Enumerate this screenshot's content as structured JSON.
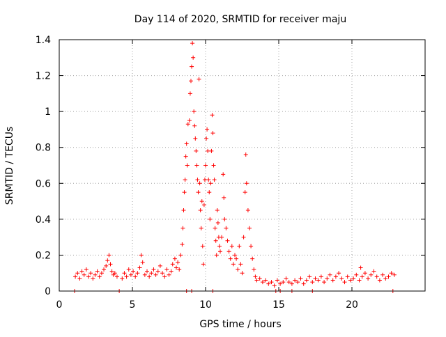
{
  "chart_data": {
    "type": "scatter",
    "title": "Day 114 of 2020, SRMTID for receiver maju",
    "xlabel": "GPS time / hours",
    "ylabel": "SRMTID / TECUs",
    "xlim": [
      0,
      25
    ],
    "ylim": [
      0,
      1.4
    ],
    "xticks": [
      0,
      5,
      10,
      15,
      20
    ],
    "yticks": [
      0,
      0.2,
      0.4,
      0.6,
      0.8,
      1,
      1.2,
      1.4
    ],
    "xtick_labels": [
      "0",
      "5",
      "10",
      "15",
      "20"
    ],
    "ytick_labels": [
      "0",
      "0.2",
      "0.4",
      "0.6",
      "0.8",
      "1",
      "1.2",
      "1.4"
    ],
    "grid": true,
    "marker": "+",
    "color": "#ff0000",
    "series": [
      {
        "name": "SRMTID",
        "points": [
          [
            1.1,
            0.08
          ],
          [
            1.25,
            0.1
          ],
          [
            1.4,
            0.07
          ],
          [
            1.55,
            0.11
          ],
          [
            1.7,
            0.09
          ],
          [
            1.85,
            0.12
          ],
          [
            2.0,
            0.08
          ],
          [
            2.15,
            0.1
          ],
          [
            2.3,
            0.07
          ],
          [
            2.45,
            0.09
          ],
          [
            2.6,
            0.11
          ],
          [
            2.75,
            0.08
          ],
          [
            2.9,
            0.1
          ],
          [
            3.05,
            0.12
          ],
          [
            3.2,
            0.14
          ],
          [
            3.3,
            0.17
          ],
          [
            3.4,
            0.2
          ],
          [
            3.5,
            0.15
          ],
          [
            3.6,
            0.11
          ],
          [
            3.7,
            0.09
          ],
          [
            3.8,
            0.1
          ],
          [
            3.95,
            0.08
          ],
          [
            4.3,
            0.07
          ],
          [
            4.45,
            0.1
          ],
          [
            4.6,
            0.08
          ],
          [
            4.75,
            0.12
          ],
          [
            4.9,
            0.09
          ],
          [
            5.05,
            0.11
          ],
          [
            5.2,
            0.08
          ],
          [
            5.35,
            0.1
          ],
          [
            5.5,
            0.13
          ],
          [
            5.6,
            0.2
          ],
          [
            5.7,
            0.16
          ],
          [
            5.85,
            0.09
          ],
          [
            6.0,
            0.11
          ],
          [
            6.15,
            0.08
          ],
          [
            6.3,
            0.1
          ],
          [
            6.45,
            0.12
          ],
          [
            6.6,
            0.09
          ],
          [
            6.75,
            0.11
          ],
          [
            6.9,
            0.14
          ],
          [
            7.05,
            0.1
          ],
          [
            7.2,
            0.08
          ],
          [
            7.35,
            0.12
          ],
          [
            7.5,
            0.09
          ],
          [
            7.65,
            0.11
          ],
          [
            7.75,
            0.15
          ],
          [
            7.9,
            0.18
          ],
          [
            8.0,
            0.13
          ],
          [
            8.1,
            0.16
          ],
          [
            8.2,
            0.12
          ],
          [
            8.3,
            0.2
          ],
          [
            8.4,
            0.26
          ],
          [
            8.45,
            0.35
          ],
          [
            8.5,
            0.45
          ],
          [
            8.55,
            0.55
          ],
          [
            8.6,
            0.62
          ],
          [
            8.65,
            0.75
          ],
          [
            8.7,
            0.82
          ],
          [
            8.75,
            0.7
          ],
          [
            8.8,
            0.93
          ],
          [
            8.9,
            0.95
          ],
          [
            8.95,
            1.1
          ],
          [
            9.0,
            1.17
          ],
          [
            9.05,
            1.25
          ],
          [
            9.1,
            1.38
          ],
          [
            9.15,
            1.3
          ],
          [
            9.2,
            1.0
          ],
          [
            9.25,
            0.92
          ],
          [
            9.3,
            0.85
          ],
          [
            9.35,
            0.78
          ],
          [
            9.4,
            0.7
          ],
          [
            9.45,
            0.62
          ],
          [
            9.5,
            0.55
          ],
          [
            9.55,
            1.18
          ],
          [
            9.6,
            0.6
          ],
          [
            9.65,
            0.45
          ],
          [
            9.7,
            0.35
          ],
          [
            9.75,
            0.5
          ],
          [
            9.8,
            0.25
          ],
          [
            9.85,
            0.15
          ],
          [
            9.9,
            0.48
          ],
          [
            9.95,
            0.62
          ],
          [
            10.0,
            0.7
          ],
          [
            10.05,
            0.85
          ],
          [
            10.1,
            0.9
          ],
          [
            10.15,
            0.78
          ],
          [
            10.2,
            0.62
          ],
          [
            10.25,
            0.55
          ],
          [
            10.3,
            0.4
          ],
          [
            10.35,
            0.6
          ],
          [
            10.4,
            0.78
          ],
          [
            10.45,
            0.98
          ],
          [
            10.5,
            0.88
          ],
          [
            10.55,
            0.7
          ],
          [
            10.6,
            0.62
          ],
          [
            10.65,
            0.35
          ],
          [
            10.7,
            0.28
          ],
          [
            10.75,
            0.2
          ],
          [
            10.8,
            0.45
          ],
          [
            10.85,
            0.38
          ],
          [
            10.9,
            0.3
          ],
          [
            10.95,
            0.25
          ],
          [
            11.0,
            0.22
          ],
          [
            11.1,
            0.3
          ],
          [
            11.2,
            0.65
          ],
          [
            11.25,
            0.52
          ],
          [
            11.3,
            0.4
          ],
          [
            11.4,
            0.35
          ],
          [
            11.5,
            0.28
          ],
          [
            11.6,
            0.22
          ],
          [
            11.7,
            0.18
          ],
          [
            11.8,
            0.25
          ],
          [
            11.9,
            0.15
          ],
          [
            12.0,
            0.2
          ],
          [
            12.1,
            0.18
          ],
          [
            12.2,
            0.12
          ],
          [
            12.3,
            0.25
          ],
          [
            12.4,
            0.15
          ],
          [
            12.5,
            0.1
          ],
          [
            12.6,
            0.3
          ],
          [
            12.7,
            0.55
          ],
          [
            12.75,
            0.76
          ],
          [
            12.8,
            0.6
          ],
          [
            12.9,
            0.45
          ],
          [
            13.0,
            0.35
          ],
          [
            13.1,
            0.25
          ],
          [
            13.2,
            0.18
          ],
          [
            13.3,
            0.12
          ],
          [
            13.4,
            0.08
          ],
          [
            13.5,
            0.06
          ],
          [
            13.7,
            0.07
          ],
          [
            13.9,
            0.05
          ],
          [
            14.1,
            0.06
          ],
          [
            14.3,
            0.04
          ],
          [
            14.5,
            0.05
          ],
          [
            14.7,
            0.03
          ],
          [
            14.9,
            0.06
          ],
          [
            15.1,
            0.04
          ],
          [
            15.3,
            0.05
          ],
          [
            15.5,
            0.07
          ],
          [
            15.7,
            0.05
          ],
          [
            15.9,
            0.04
          ],
          [
            16.1,
            0.06
          ],
          [
            16.3,
            0.05
          ],
          [
            16.5,
            0.07
          ],
          [
            16.7,
            0.04
          ],
          [
            16.9,
            0.06
          ],
          [
            17.1,
            0.08
          ],
          [
            17.3,
            0.05
          ],
          [
            17.5,
            0.07
          ],
          [
            17.7,
            0.06
          ],
          [
            17.9,
            0.08
          ],
          [
            18.1,
            0.05
          ],
          [
            18.3,
            0.07
          ],
          [
            18.5,
            0.09
          ],
          [
            18.7,
            0.06
          ],
          [
            18.9,
            0.08
          ],
          [
            19.1,
            0.1
          ],
          [
            19.3,
            0.07
          ],
          [
            19.5,
            0.05
          ],
          [
            19.7,
            0.08
          ],
          [
            19.9,
            0.06
          ],
          [
            20.1,
            0.07
          ],
          [
            20.3,
            0.09
          ],
          [
            20.5,
            0.06
          ],
          [
            20.6,
            0.13
          ],
          [
            20.7,
            0.08
          ],
          [
            20.9,
            0.1
          ],
          [
            21.1,
            0.07
          ],
          [
            21.3,
            0.09
          ],
          [
            21.5,
            0.11
          ],
          [
            21.7,
            0.08
          ],
          [
            21.9,
            0.06
          ],
          [
            22.1,
            0.09
          ],
          [
            22.3,
            0.07
          ],
          [
            22.5,
            0.08
          ],
          [
            22.7,
            0.1
          ],
          [
            22.9,
            0.09
          ],
          [
            1.05,
            0.0
          ],
          [
            4.1,
            0.0
          ],
          [
            8.7,
            0.0
          ],
          [
            9.05,
            0.0
          ],
          [
            10.5,
            0.0
          ],
          [
            14.8,
            0.0
          ],
          [
            15.1,
            0.0
          ],
          [
            15.9,
            0.0
          ],
          [
            17.3,
            0.0
          ],
          [
            22.8,
            0.0
          ]
        ]
      }
    ]
  }
}
